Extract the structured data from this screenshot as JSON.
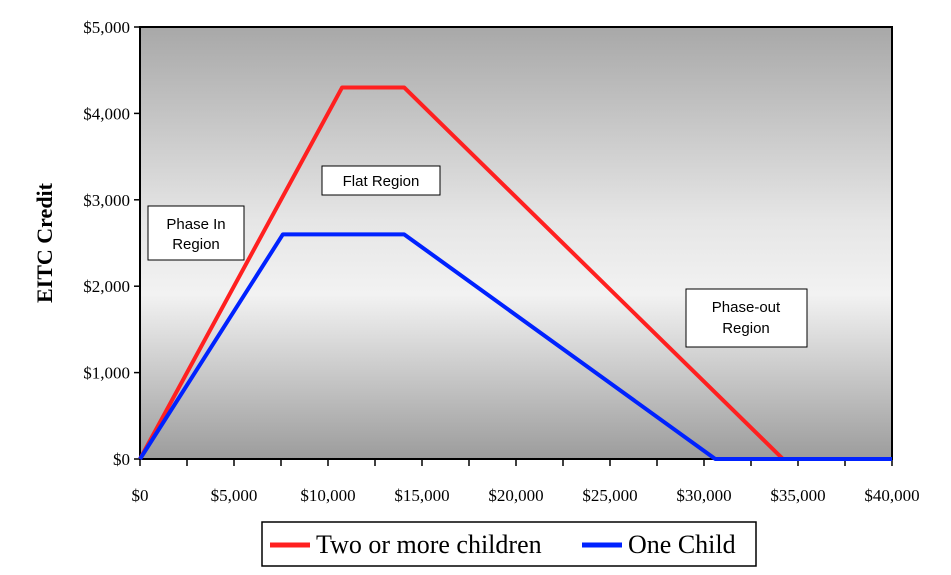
{
  "chart_data": {
    "type": "line",
    "title": "",
    "xlabel": "",
    "ylabel": "EITC Credit",
    "xlim": [
      0,
      40000
    ],
    "ylim": [
      0,
      5000
    ],
    "x_ticks": [
      0,
      5000,
      10000,
      15000,
      20000,
      25000,
      30000,
      35000,
      40000
    ],
    "x_tick_labels": [
      "$0",
      "$5,000",
      "$10,000",
      "$15,000",
      "$20,000",
      "$25,000",
      "$30,000",
      "$35,000",
      "$40,000"
    ],
    "y_ticks": [
      0,
      1000,
      2000,
      3000,
      4000,
      5000
    ],
    "y_tick_labels": [
      "$0",
      "$1,000",
      "$2,000",
      "$3,000",
      "$4,000",
      "$5,000"
    ],
    "grid": false,
    "legend_position": "bottom",
    "series": [
      {
        "name": "Two or more children",
        "color": "#ff2020",
        "x": [
          0,
          10750,
          14050,
          34200,
          40000
        ],
        "y": [
          0,
          4300,
          4300,
          0,
          0
        ]
      },
      {
        "name": "One Child",
        "color": "#0022ff",
        "x": [
          0,
          7600,
          14050,
          30600,
          40000
        ],
        "y": [
          0,
          2600,
          2600,
          0,
          0
        ]
      }
    ],
    "annotations": [
      {
        "id": "phase-in",
        "lines": [
          "Phase In",
          "Region"
        ]
      },
      {
        "id": "flat",
        "lines": [
          "Flat Region"
        ]
      },
      {
        "id": "phase-out",
        "lines": [
          "Phase-out",
          "Region"
        ]
      }
    ]
  }
}
